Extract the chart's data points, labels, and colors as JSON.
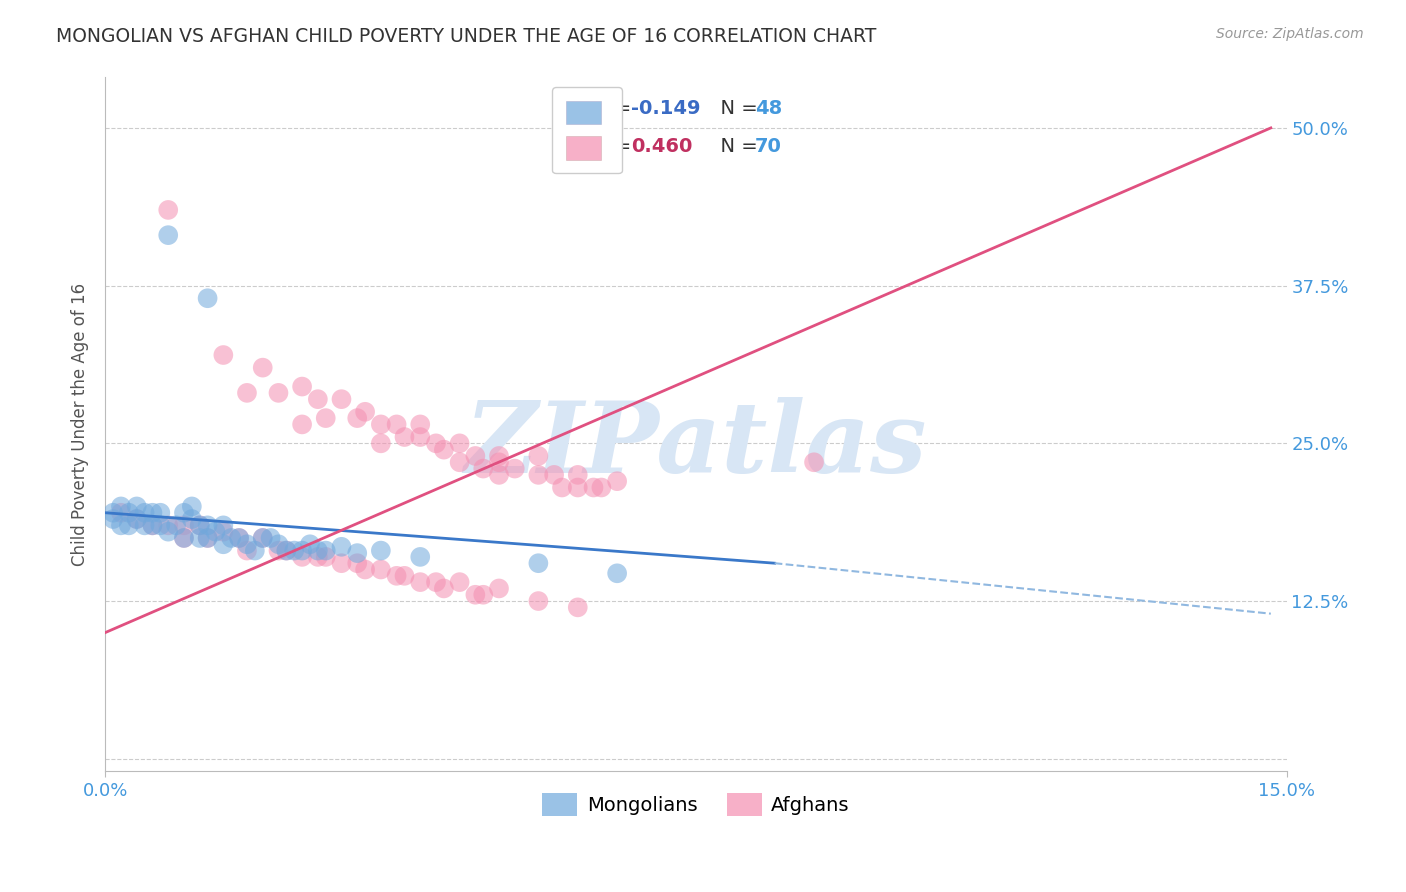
{
  "title": "MONGOLIAN VS AFGHAN CHILD POVERTY UNDER THE AGE OF 16 CORRELATION CHART",
  "source": "Source: ZipAtlas.com",
  "ylabel": "Child Poverty Under the Age of 16",
  "xlim": [
    0.0,
    0.15
  ],
  "ylim": [
    -0.01,
    0.54
  ],
  "yticks": [
    0.0,
    0.125,
    0.25,
    0.375,
    0.5
  ],
  "ytick_labels": [
    "",
    "12.5%",
    "25.0%",
    "37.5%",
    "50.0%"
  ],
  "mongolian_color": "#6FA8DC",
  "afghan_color": "#F48FB1",
  "trend_mongolian_solid_color": "#3A78C9",
  "trend_mongolian_dash_color": "#90B8E0",
  "trend_afghan_color": "#E05080",
  "watermark": "ZIPatlas",
  "watermark_color": "#D8E6F5",
  "background_color": "#FFFFFF",
  "grid_color": "#CCCCCC",
  "title_color": "#333333",
  "axis_label_color": "#555555",
  "tick_label_color": "#4499DD",
  "legend_r_mongolian": "-0.149",
  "legend_r_afghan": "0.460",
  "legend_n_mongolian": "48",
  "legend_n_afghan": "70",
  "legend_r_color_mongolian": "#3A6BC4",
  "legend_r_color_afghan": "#C03060",
  "legend_n_color": "#4499DD",
  "mon_trend_x0": 0.0,
  "mon_trend_y0": 0.195,
  "mon_trend_x1": 0.085,
  "mon_trend_y1": 0.155,
  "mon_trend_dash_x1": 0.148,
  "mon_trend_dash_y1": 0.115,
  "afg_trend_x0": 0.0,
  "afg_trend_y0": 0.1,
  "afg_trend_x1": 0.148,
  "afg_trend_y1": 0.5,
  "mongolian_x": [
    0.008,
    0.013,
    0.001,
    0.001,
    0.002,
    0.002,
    0.003,
    0.003,
    0.004,
    0.004,
    0.005,
    0.005,
    0.006,
    0.006,
    0.007,
    0.007,
    0.008,
    0.009,
    0.01,
    0.01,
    0.011,
    0.011,
    0.012,
    0.012,
    0.013,
    0.013,
    0.014,
    0.015,
    0.015,
    0.016,
    0.017,
    0.018,
    0.019,
    0.02,
    0.021,
    0.022,
    0.023,
    0.024,
    0.025,
    0.026,
    0.027,
    0.028,
    0.03,
    0.032,
    0.035,
    0.04,
    0.055,
    0.065
  ],
  "mongolian_y": [
    0.415,
    0.365,
    0.195,
    0.19,
    0.185,
    0.2,
    0.195,
    0.185,
    0.2,
    0.19,
    0.195,
    0.185,
    0.185,
    0.195,
    0.185,
    0.195,
    0.18,
    0.185,
    0.175,
    0.195,
    0.19,
    0.2,
    0.185,
    0.175,
    0.175,
    0.185,
    0.18,
    0.17,
    0.185,
    0.175,
    0.175,
    0.17,
    0.165,
    0.175,
    0.175,
    0.17,
    0.165,
    0.165,
    0.165,
    0.17,
    0.165,
    0.165,
    0.168,
    0.163,
    0.165,
    0.16,
    0.155,
    0.147
  ],
  "afghan_x": [
    0.008,
    0.015,
    0.018,
    0.02,
    0.022,
    0.025,
    0.025,
    0.027,
    0.028,
    0.03,
    0.032,
    0.033,
    0.035,
    0.035,
    0.037,
    0.038,
    0.04,
    0.04,
    0.042,
    0.043,
    0.045,
    0.045,
    0.047,
    0.048,
    0.05,
    0.05,
    0.05,
    0.052,
    0.055,
    0.055,
    0.057,
    0.058,
    0.06,
    0.06,
    0.062,
    0.063,
    0.065,
    0.002,
    0.004,
    0.006,
    0.008,
    0.01,
    0.01,
    0.012,
    0.013,
    0.015,
    0.017,
    0.018,
    0.02,
    0.022,
    0.023,
    0.025,
    0.027,
    0.028,
    0.03,
    0.032,
    0.033,
    0.035,
    0.037,
    0.038,
    0.04,
    0.042,
    0.043,
    0.045,
    0.047,
    0.048,
    0.05,
    0.055,
    0.06,
    0.09
  ],
  "afghan_y": [
    0.435,
    0.32,
    0.29,
    0.31,
    0.29,
    0.295,
    0.265,
    0.285,
    0.27,
    0.285,
    0.27,
    0.275,
    0.265,
    0.25,
    0.265,
    0.255,
    0.255,
    0.265,
    0.25,
    0.245,
    0.25,
    0.235,
    0.24,
    0.23,
    0.235,
    0.225,
    0.24,
    0.23,
    0.225,
    0.24,
    0.225,
    0.215,
    0.225,
    0.215,
    0.215,
    0.215,
    0.22,
    0.195,
    0.19,
    0.185,
    0.185,
    0.185,
    0.175,
    0.185,
    0.175,
    0.18,
    0.175,
    0.165,
    0.175,
    0.165,
    0.165,
    0.16,
    0.16,
    0.16,
    0.155,
    0.155,
    0.15,
    0.15,
    0.145,
    0.145,
    0.14,
    0.14,
    0.135,
    0.14,
    0.13,
    0.13,
    0.135,
    0.125,
    0.12,
    0.235
  ]
}
